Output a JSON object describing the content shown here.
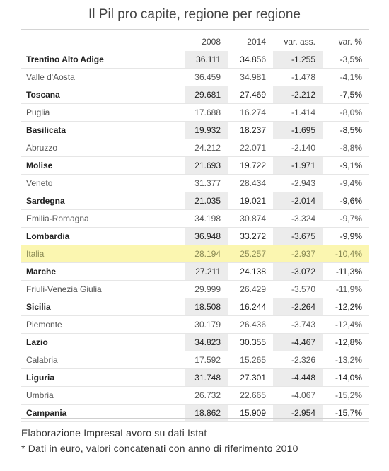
{
  "title": "Il Pil pro capite, regione per regione",
  "columns": [
    "",
    "2008",
    "2014",
    "var. ass.",
    "var. %"
  ],
  "chart_data": {
    "type": "table",
    "title": "Il Pil pro capite, regione per regione",
    "columns": [
      "",
      "2008",
      "2014",
      "var. ass.",
      "var. %"
    ],
    "rows": [
      {
        "region": "Trentino Alto Adige",
        "y2008": "36.111",
        "y2014": "34.856",
        "abs": "-1.255",
        "pct": "-3,5%"
      },
      {
        "region": "Valle d'Aosta",
        "y2008": "36.459",
        "y2014": "34.981",
        "abs": "-1.478",
        "pct": "-4,1%"
      },
      {
        "region": "Toscana",
        "y2008": "29.681",
        "y2014": "27.469",
        "abs": "-2.212",
        "pct": "-7,5%"
      },
      {
        "region": "Puglia",
        "y2008": "17.688",
        "y2014": "16.274",
        "abs": "-1.414",
        "pct": "-8,0%"
      },
      {
        "region": "Basilicata",
        "y2008": "19.932",
        "y2014": "18.237",
        "abs": "-1.695",
        "pct": "-8,5%"
      },
      {
        "region": "Abruzzo",
        "y2008": "24.212",
        "y2014": "22.071",
        "abs": "-2.140",
        "pct": "-8,8%"
      },
      {
        "region": "Molise",
        "y2008": "21.693",
        "y2014": "19.722",
        "abs": "-1.971",
        "pct": "-9,1%"
      },
      {
        "region": "Veneto",
        "y2008": "31.377",
        "y2014": "28.434",
        "abs": "-2.943",
        "pct": "-9,4%"
      },
      {
        "region": "Sardegna",
        "y2008": "21.035",
        "y2014": "19.021",
        "abs": "-2.014",
        "pct": "-9,6%"
      },
      {
        "region": "Emilia-Romagna",
        "y2008": "34.198",
        "y2014": "30.874",
        "abs": "-3.324",
        "pct": "-9,7%"
      },
      {
        "region": "Lombardia",
        "y2008": "36.948",
        "y2014": "33.272",
        "abs": "-3.675",
        "pct": "-9,9%"
      },
      {
        "region": "Italia",
        "y2008": "28.194",
        "y2014": "25.257",
        "abs": "-2.937",
        "pct": "-10,4%",
        "highlight": true
      },
      {
        "region": "Marche",
        "y2008": "27.211",
        "y2014": "24.138",
        "abs": "-3.072",
        "pct": "-11,3%"
      },
      {
        "region": "Friuli-Venezia Giulia",
        "y2008": "29.999",
        "y2014": "26.429",
        "abs": "-3.570",
        "pct": "-11,9%"
      },
      {
        "region": "Sicilia",
        "y2008": "18.508",
        "y2014": "16.244",
        "abs": "-2.264",
        "pct": "-12,2%"
      },
      {
        "region": "Piemonte",
        "y2008": "30.179",
        "y2014": "26.436",
        "abs": "-3.743",
        "pct": "-12,4%"
      },
      {
        "region": "Lazio",
        "y2008": "34.823",
        "y2014": "30.355",
        "abs": "-4.467",
        "pct": "-12,8%"
      },
      {
        "region": "Calabria",
        "y2008": "17.592",
        "y2014": "15.265",
        "abs": "-2.326",
        "pct": "-13,2%"
      },
      {
        "region": "Liguria",
        "y2008": "31.748",
        "y2014": "27.301",
        "abs": "-4.448",
        "pct": "-14,0%"
      },
      {
        "region": "Umbria",
        "y2008": "26.732",
        "y2014": "22.665",
        "abs": "-4.067",
        "pct": "-15,2%"
      },
      {
        "region": "Campania",
        "y2008": "18.862",
        "y2014": "15.909",
        "abs": "-2.954",
        "pct": "-15,7%"
      }
    ]
  },
  "source_note": "Elaborazione ImpresaLavoro su dati Istat",
  "footnote": "* Dati in euro, valori concatenati con anno di riferimento 2010",
  "colors": {
    "highlight": "#fbf6b0",
    "shaded": "#ececec"
  }
}
